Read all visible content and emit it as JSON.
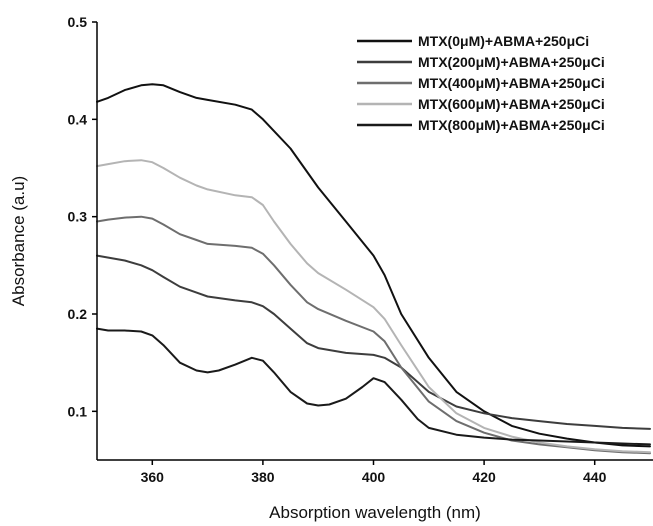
{
  "chart_data": {
    "type": "line",
    "xlabel": "Absorption wavelength (nm)",
    "ylabel": "Absorbance (a.u)",
    "xlim": [
      350,
      450
    ],
    "ylim": [
      0.05,
      0.5
    ],
    "xticks": [
      360,
      380,
      400,
      420,
      440
    ],
    "yticks": [
      0.1,
      0.2,
      0.3,
      0.4,
      0.5
    ],
    "legend_position": "top-right",
    "grid": false,
    "series": [
      {
        "name": "MTX(0μM)+ABMA+250μCi",
        "color": "#111111",
        "x": [
          350,
          352,
          355,
          358,
          360,
          362,
          365,
          368,
          370,
          375,
          378,
          380,
          385,
          390,
          395,
          400,
          402,
          405,
          410,
          415,
          420,
          425,
          430,
          435,
          440,
          445,
          450
        ],
        "y": [
          0.418,
          0.422,
          0.43,
          0.435,
          0.436,
          0.435,
          0.428,
          0.422,
          0.42,
          0.415,
          0.41,
          0.4,
          0.37,
          0.33,
          0.295,
          0.26,
          0.24,
          0.2,
          0.155,
          0.12,
          0.1,
          0.085,
          0.077,
          0.072,
          0.068,
          0.065,
          0.064
        ]
      },
      {
        "name": "MTX(200μM)+ABMA+250μCi",
        "color": "#3d3d3d",
        "x": [
          350,
          355,
          358,
          360,
          362,
          365,
          368,
          370,
          375,
          378,
          380,
          382,
          385,
          388,
          390,
          395,
          400,
          402,
          405,
          410,
          415,
          420,
          425,
          430,
          435,
          440,
          445,
          450
        ],
        "y": [
          0.26,
          0.255,
          0.25,
          0.245,
          0.238,
          0.228,
          0.222,
          0.218,
          0.214,
          0.212,
          0.208,
          0.2,
          0.185,
          0.17,
          0.165,
          0.16,
          0.158,
          0.155,
          0.145,
          0.12,
          0.105,
          0.098,
          0.093,
          0.09,
          0.087,
          0.085,
          0.083,
          0.082
        ]
      },
      {
        "name": "MTX(400μM)+ABMA+250μCi",
        "color": "#6e6e6e",
        "x": [
          350,
          352,
          355,
          358,
          360,
          362,
          365,
          368,
          370,
          375,
          378,
          380,
          382,
          385,
          388,
          390,
          395,
          400,
          402,
          405,
          410,
          415,
          420,
          425,
          430,
          435,
          440,
          445,
          450
        ],
        "y": [
          0.295,
          0.297,
          0.299,
          0.3,
          0.298,
          0.292,
          0.282,
          0.276,
          0.272,
          0.27,
          0.268,
          0.262,
          0.25,
          0.23,
          0.212,
          0.205,
          0.193,
          0.182,
          0.172,
          0.145,
          0.11,
          0.09,
          0.078,
          0.07,
          0.066,
          0.063,
          0.06,
          0.058,
          0.057
        ]
      },
      {
        "name": "MTX(600μM)+ABMA+250μCi",
        "color": "#b4b4b4",
        "x": [
          350,
          352,
          355,
          358,
          360,
          362,
          365,
          368,
          370,
          375,
          378,
          380,
          382,
          385,
          388,
          390,
          395,
          400,
          402,
          405,
          410,
          415,
          420,
          425,
          430,
          435,
          440,
          445,
          450
        ],
        "y": [
          0.352,
          0.354,
          0.357,
          0.358,
          0.356,
          0.35,
          0.34,
          0.332,
          0.328,
          0.322,
          0.32,
          0.312,
          0.295,
          0.272,
          0.252,
          0.242,
          0.225,
          0.207,
          0.195,
          0.168,
          0.125,
          0.098,
          0.083,
          0.074,
          0.068,
          0.064,
          0.061,
          0.059,
          0.058
        ]
      },
      {
        "name": "MTX(800μM)+ABMA+250μCi",
        "color": "#1a1a1a",
        "x": [
          350,
          352,
          355,
          358,
          360,
          362,
          365,
          368,
          370,
          372,
          375,
          378,
          380,
          382,
          385,
          388,
          390,
          392,
          395,
          398,
          400,
          402,
          405,
          408,
          410,
          415,
          420,
          425,
          430,
          435,
          440,
          445,
          450
        ],
        "y": [
          0.185,
          0.183,
          0.183,
          0.182,
          0.178,
          0.168,
          0.15,
          0.142,
          0.14,
          0.142,
          0.148,
          0.155,
          0.152,
          0.14,
          0.12,
          0.108,
          0.106,
          0.107,
          0.113,
          0.125,
          0.134,
          0.13,
          0.112,
          0.092,
          0.083,
          0.076,
          0.073,
          0.071,
          0.07,
          0.069,
          0.068,
          0.067,
          0.066
        ]
      }
    ]
  }
}
